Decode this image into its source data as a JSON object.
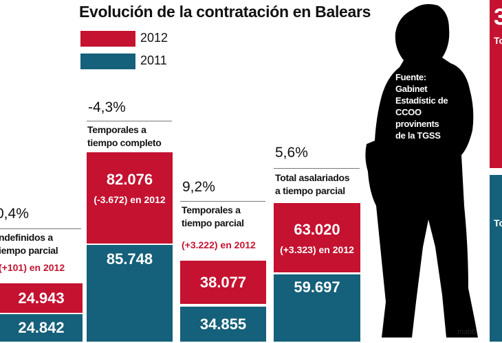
{
  "chart_data": {
    "type": "bar",
    "title": "Evolución de la contratación en Balears",
    "legend": [
      {
        "label": "2012",
        "color": "#c41230"
      },
      {
        "label": "2011",
        "color": "#15607a"
      }
    ],
    "categories": [
      {
        "pct": "0,4%",
        "label1": "ndefinidos a",
        "label2": "iempo parcial",
        "change": "(+101) en 2012",
        "v2012": "24.943",
        "v2011": "24.842"
      },
      {
        "pct": "-4,3%",
        "label1": "Temporales a",
        "label2": "tiempo completo",
        "change": "(-3.672) en 2012",
        "v2012": "82.076",
        "v2011": "85.748"
      },
      {
        "pct": "9,2%",
        "label1": "Temporales a",
        "label2": "tiempo parcial",
        "change": "(+3.222) en 2012",
        "v2012": "38.077",
        "v2011": "34.855"
      },
      {
        "pct": "5,6%",
        "label1": "Total asalariados",
        "label2": "a tiempo parcial",
        "change": "(+3.323) en 2012",
        "v2012": "63.020",
        "v2011": "59.697"
      }
    ],
    "series": [
      {
        "name": "2012",
        "values": [
          24943,
          82076,
          38077,
          63020
        ]
      },
      {
        "name": "2011",
        "values": [
          24842,
          85748,
          34855,
          59697
        ]
      }
    ]
  },
  "source": [
    "Fuente:",
    "Gabinet",
    "Estadístic de",
    "CCOO",
    "provinents",
    "de la TGSS"
  ],
  "credit": "mabb",
  "right_panel": {
    "top_number": "3",
    "top_label": "To",
    "bottom_label": "To"
  }
}
